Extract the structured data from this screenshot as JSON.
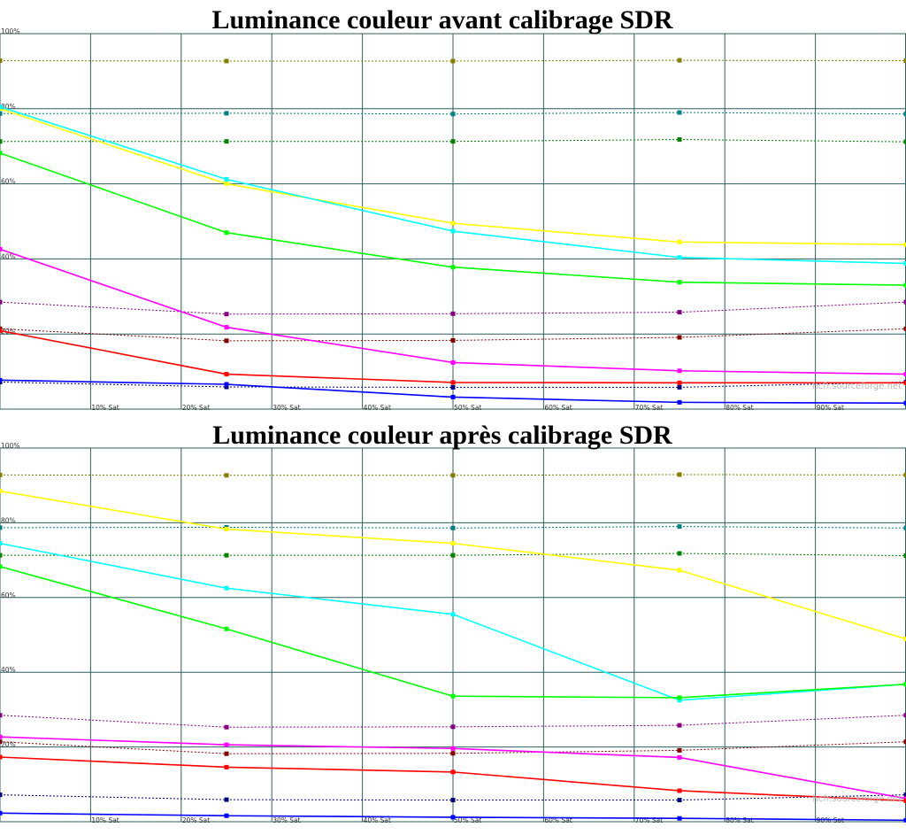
{
  "watermark": "hcfr.sourceforge.net",
  "chart_data": [
    {
      "type": "line",
      "title": "Luminance couleur avant calibrage SDR",
      "xlabel": "",
      "ylabel": "",
      "xlim": [
        0,
        100
      ],
      "ylim": [
        0,
        100
      ],
      "grid": true,
      "x_ticks": [
        "10% Sat",
        "20% Sat",
        "30% Sat",
        "40% Sat",
        "50% Sat",
        "60% Sat",
        "70% Sat",
        "80% Sat",
        "90% Sat"
      ],
      "y_ticks": [
        "20%",
        "40%",
        "60%",
        "80%",
        "100%"
      ],
      "x": [
        0,
        25,
        50,
        75,
        100
      ],
      "series": [
        {
          "color": "#ffff00",
          "values": [
            80,
            60,
            49.5,
            44.5,
            43.8
          ]
        },
        {
          "color": "#00ffff",
          "values": [
            80.5,
            61.2,
            47.4,
            40.4,
            38.8
          ]
        },
        {
          "color": "#00ff00",
          "values": [
            68.2,
            47,
            37.8,
            33.8,
            33
          ]
        },
        {
          "color": "#ff00ff",
          "values": [
            42.6,
            21.8,
            12.4,
            10.2,
            9.3
          ]
        },
        {
          "color": "#ff0000",
          "values": [
            20.9,
            9.3,
            7.1,
            7,
            7
          ]
        },
        {
          "color": "#0000ff",
          "values": [
            7.7,
            6.6,
            3.2,
            1.8,
            1.6
          ]
        }
      ],
      "reference_series": [
        {
          "color": "#808000",
          "values": [
            92.8,
            92.7,
            92.7,
            92.9,
            92.8
          ]
        },
        {
          "color": "#008080",
          "values": [
            78.7,
            78.8,
            78.6,
            79,
            78.6
          ]
        },
        {
          "color": "#008000",
          "values": [
            71.3,
            71.3,
            71.3,
            71.8,
            71.2
          ]
        },
        {
          "color": "#800080",
          "values": [
            28.5,
            25.3,
            25.4,
            25.8,
            28.5
          ]
        },
        {
          "color": "#800000",
          "values": [
            21.4,
            18.2,
            18.3,
            19.1,
            21.4
          ]
        },
        {
          "color": "#000080",
          "values": [
            7.2,
            5.9,
            5.8,
            5.8,
            7.2
          ]
        }
      ]
    },
    {
      "type": "line",
      "title": "Luminance couleur après calibrage SDR",
      "xlabel": "",
      "ylabel": "",
      "xlim": [
        0,
        100
      ],
      "ylim": [
        0,
        100
      ],
      "grid": true,
      "x_ticks": [
        "10% Sat",
        "20% Sat",
        "30% Sat",
        "40% Sat",
        "50% Sat",
        "60% Sat",
        "70% Sat",
        "80% Sat",
        "90% Sat"
      ],
      "y_ticks": [
        "20%",
        "40%",
        "60%",
        "80%",
        "100%"
      ],
      "x": [
        0,
        25,
        50,
        75,
        100
      ],
      "series": [
        {
          "color": "#ffff00",
          "values": [
            88.5,
            78.3,
            74.5,
            67.3,
            48.9
          ]
        },
        {
          "color": "#00ffff",
          "values": [
            74.5,
            62.5,
            55.5,
            32.5,
            36.8
          ]
        },
        {
          "color": "#00ff00",
          "values": [
            68.3,
            51.6,
            33.6,
            33.2,
            36.8
          ]
        },
        {
          "color": "#ff00ff",
          "values": [
            22.7,
            20.6,
            19.6,
            17.2,
            6.2
          ]
        },
        {
          "color": "#ff0000",
          "values": [
            17.3,
            14.6,
            13.3,
            8.3,
            5.6
          ]
        },
        {
          "color": "#0000ff",
          "values": [
            2.3,
            1.6,
            1.2,
            0.9,
            0.4
          ]
        }
      ],
      "reference_series": [
        {
          "color": "#808000",
          "values": [
            92.8,
            92.7,
            92.7,
            92.9,
            92.8
          ]
        },
        {
          "color": "#008080",
          "values": [
            78.7,
            78.8,
            78.6,
            79,
            78.6
          ]
        },
        {
          "color": "#008000",
          "values": [
            71.3,
            71.3,
            71.3,
            71.8,
            71.2
          ]
        },
        {
          "color": "#800080",
          "values": [
            28.5,
            25.3,
            25.4,
            25.8,
            28.5
          ]
        },
        {
          "color": "#800000",
          "values": [
            21.4,
            18.2,
            18.3,
            19.1,
            21.4
          ]
        },
        {
          "color": "#000080",
          "values": [
            7.2,
            5.9,
            5.8,
            5.8,
            7.2
          ]
        }
      ]
    }
  ]
}
